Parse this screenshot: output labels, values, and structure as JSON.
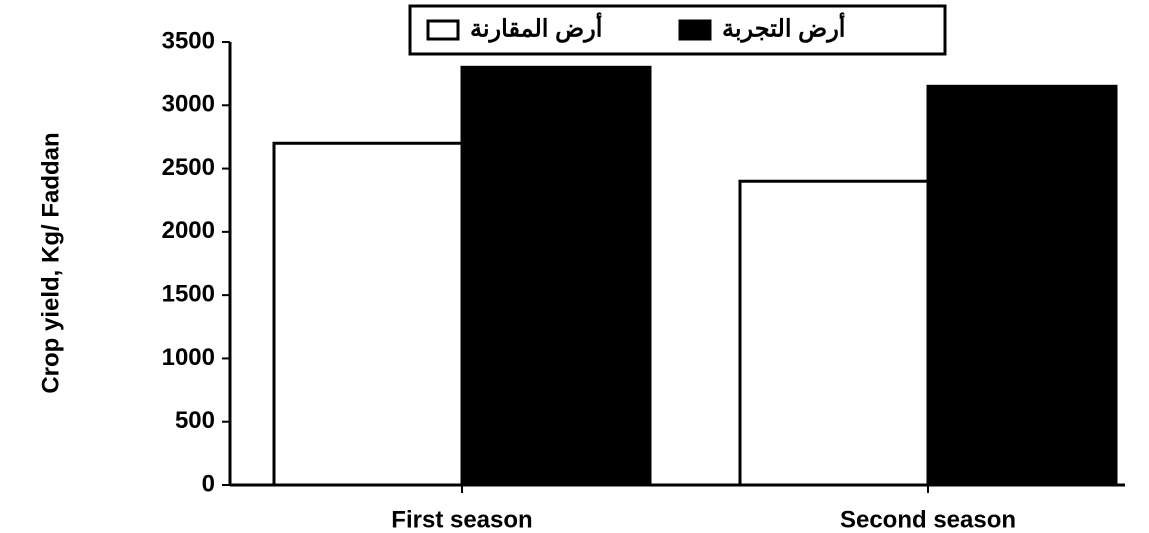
{
  "chart_data": {
    "type": "bar",
    "y_label": "Crop yield, Kg/ Faddan",
    "categories": [
      "First season",
      "Second season"
    ],
    "series": [
      {
        "name": "أرض المقارنة",
        "color": "#ffffff",
        "values": [
          2700,
          2400
        ]
      },
      {
        "name": "أرض التجربة",
        "color": "#000000",
        "values": [
          3300,
          3150
        ]
      }
    ],
    "ylim": [
      0,
      3500
    ],
    "yticks": [
      0,
      500,
      1000,
      1500,
      2000,
      2500,
      3000,
      3500
    ],
    "legend": "top"
  }
}
